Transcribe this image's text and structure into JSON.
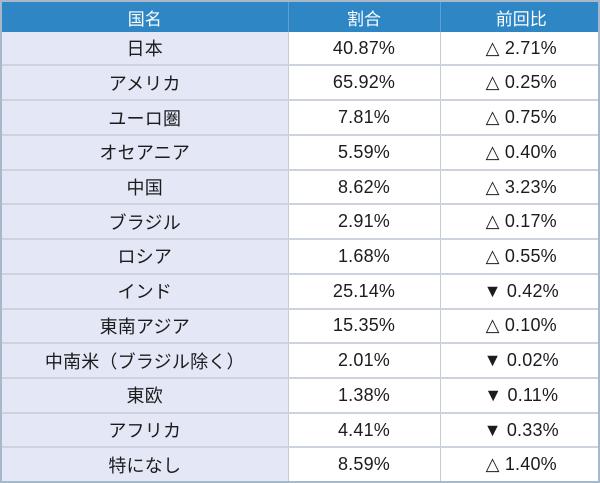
{
  "colors": {
    "header_bg": "#2e86c5",
    "header_text": "#ffffff",
    "name_column_bg": "#e3e7f6",
    "value_column_bg": "#ffffff",
    "grid_line": "#ccd2de",
    "outer_border": "#a9b7cb",
    "body_text": "#1c1c1c"
  },
  "table": {
    "headers": [
      "国名",
      "割合",
      "前回比"
    ],
    "rows": [
      {
        "name": "日本",
        "share": "40.87%",
        "change": "△ 2.71%",
        "direction": "up"
      },
      {
        "name": "アメリカ",
        "share": "65.92%",
        "change": "△ 0.25%",
        "direction": "up"
      },
      {
        "name": "ユーロ圏",
        "share": "7.81%",
        "change": "△ 0.75%",
        "direction": "up"
      },
      {
        "name": "オセアニア",
        "share": "5.59%",
        "change": "△ 0.40%",
        "direction": "up"
      },
      {
        "name": "中国",
        "share": "8.62%",
        "change": "△ 3.23%",
        "direction": "up"
      },
      {
        "name": "ブラジル",
        "share": "2.91%",
        "change": "△ 0.17%",
        "direction": "up"
      },
      {
        "name": "ロシア",
        "share": "1.68%",
        "change": "△ 0.55%",
        "direction": "up"
      },
      {
        "name": "インド",
        "share": "25.14%",
        "change": "▼ 0.42%",
        "direction": "down"
      },
      {
        "name": "東南アジア",
        "share": "15.35%",
        "change": "△ 0.10%",
        "direction": "up"
      },
      {
        "name": "中南米（ブラジル除く）",
        "share": "2.01%",
        "change": "▼ 0.02%",
        "direction": "down"
      },
      {
        "name": "東欧",
        "share": "1.38%",
        "change": "▼ 0.11%",
        "direction": "down"
      },
      {
        "name": "アフリカ",
        "share": "4.41%",
        "change": "▼ 0.33%",
        "direction": "down"
      },
      {
        "name": "特になし",
        "share": "8.59%",
        "change": "△ 1.40%",
        "direction": "up"
      }
    ]
  },
  "chart_data": {
    "type": "table",
    "title": "",
    "columns": [
      "国名",
      "割合",
      "前回比"
    ],
    "categories": [
      "日本",
      "アメリカ",
      "ユーロ圏",
      "オセアニア",
      "中国",
      "ブラジル",
      "ロシア",
      "インド",
      "東南アジア",
      "中南米（ブラジル除く）",
      "東欧",
      "アフリカ",
      "特になし"
    ],
    "series": [
      {
        "name": "割合 (%)",
        "values": [
          40.87,
          65.92,
          7.81,
          5.59,
          8.62,
          2.91,
          1.68,
          25.14,
          15.35,
          2.01,
          1.38,
          4.41,
          8.59
        ]
      },
      {
        "name": "前回比 (%)",
        "values": [
          2.71,
          0.25,
          0.75,
          0.4,
          3.23,
          0.17,
          0.55,
          -0.42,
          0.1,
          -0.02,
          -0.11,
          -0.33,
          1.4
        ]
      }
    ],
    "notes": "△ = increase vs previous survey, ▼ = decrease vs previous survey"
  }
}
